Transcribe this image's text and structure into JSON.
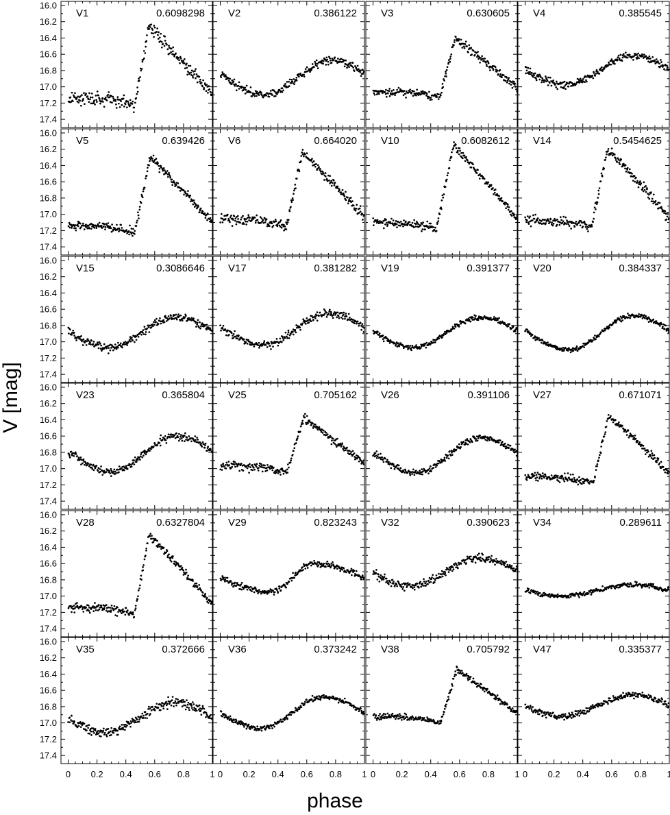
{
  "chart_data": {
    "type": "scatter",
    "layout": "6x4 panel grid, shared axes",
    "xlabel": "phase",
    "ylabel": "V [mag]",
    "xlim": [
      -0.05,
      1.0
    ],
    "ylim": [
      17.5,
      15.95
    ],
    "y_inverted": true,
    "xticks": [
      0,
      0.2,
      0.4,
      0.6,
      0.8,
      1
    ],
    "xtick_labels": [
      "0",
      "0.2",
      "0.4",
      "0.6",
      "0.8",
      "1"
    ],
    "yticks": [
      16.0,
      16.2,
      16.4,
      16.6,
      16.8,
      17.0,
      17.2,
      17.4
    ],
    "ytick_labels": [
      "16.0",
      "16.2",
      "16.4",
      "16.6",
      "16.8",
      "17.0",
      "17.2",
      "17.4"
    ],
    "grid": false,
    "marker_color": "#000000",
    "panels": [
      {
        "name": "V1",
        "period": "0.6098298",
        "kind": "ab",
        "min_mag": 17.22,
        "max_mag": 16.27,
        "rise_start": 0.46,
        "rise_end": 0.56,
        "scatter": 0.04
      },
      {
        "name": "V2",
        "period": "0.386122",
        "kind": "c",
        "min_mag": 17.1,
        "max_mag": 16.67,
        "min_phase": 0.3,
        "max_phase": 0.78,
        "scatter": 0.025
      },
      {
        "name": "V3",
        "period": "0.630605",
        "kind": "ab",
        "min_mag": 17.14,
        "max_mag": 16.4,
        "rise_start": 0.46,
        "rise_end": 0.57,
        "scatter": 0.025
      },
      {
        "name": "V4",
        "period": "0.385545",
        "kind": "c",
        "min_mag": 16.98,
        "max_mag": 16.62,
        "min_phase": 0.28,
        "max_phase": 0.75,
        "scatter": 0.025
      },
      {
        "name": "V5",
        "period": "0.639426",
        "kind": "ab",
        "min_mag": 17.22,
        "max_mag": 16.3,
        "rise_start": 0.46,
        "rise_end": 0.57,
        "scatter": 0.025
      },
      {
        "name": "V6",
        "period": "0.664020",
        "kind": "ab",
        "min_mag": 17.15,
        "max_mag": 16.23,
        "rise_start": 0.46,
        "rise_end": 0.57,
        "scatter": 0.03
      },
      {
        "name": "V10",
        "period": "0.6082612",
        "kind": "ab",
        "min_mag": 17.18,
        "max_mag": 16.15,
        "rise_start": 0.44,
        "rise_end": 0.56,
        "scatter": 0.025
      },
      {
        "name": "V14",
        "period": "0.5454625",
        "kind": "ab",
        "min_mag": 17.16,
        "max_mag": 16.2,
        "rise_start": 0.46,
        "rise_end": 0.57,
        "scatter": 0.03
      },
      {
        "name": "V15",
        "period": "0.3086646",
        "kind": "c",
        "min_mag": 17.07,
        "max_mag": 16.7,
        "min_phase": 0.28,
        "max_phase": 0.75,
        "scatter": 0.025
      },
      {
        "name": "V17",
        "period": "0.381282",
        "kind": "c",
        "min_mag": 17.04,
        "max_mag": 16.65,
        "min_phase": 0.3,
        "max_phase": 0.75,
        "scatter": 0.025
      },
      {
        "name": "V19",
        "period": "0.391377",
        "kind": "c",
        "min_mag": 17.07,
        "max_mag": 16.7,
        "min_phase": 0.28,
        "max_phase": 0.75,
        "scatter": 0.015
      },
      {
        "name": "V20",
        "period": "0.384337",
        "kind": "c",
        "min_mag": 17.1,
        "max_mag": 16.68,
        "min_phase": 0.3,
        "max_phase": 0.75,
        "scatter": 0.015
      },
      {
        "name": "V23",
        "period": "0.365804",
        "kind": "c",
        "min_mag": 17.04,
        "max_mag": 16.6,
        "min_phase": 0.3,
        "max_phase": 0.75,
        "scatter": 0.025
      },
      {
        "name": "V25",
        "period": "0.705162",
        "kind": "ab",
        "min_mag": 17.05,
        "max_mag": 16.38,
        "rise_start": 0.46,
        "rise_end": 0.58,
        "scatter": 0.025
      },
      {
        "name": "V26",
        "period": "0.391106",
        "kind": "c",
        "min_mag": 17.05,
        "max_mag": 16.62,
        "min_phase": 0.3,
        "max_phase": 0.75,
        "scatter": 0.02
      },
      {
        "name": "V27",
        "period": "0.671071",
        "kind": "ab",
        "min_mag": 17.18,
        "max_mag": 16.35,
        "rise_start": 0.47,
        "rise_end": 0.58,
        "scatter": 0.025
      },
      {
        "name": "V28",
        "period": "0.6327804",
        "kind": "ab",
        "min_mag": 17.22,
        "max_mag": 16.25,
        "rise_start": 0.46,
        "rise_end": 0.56,
        "scatter": 0.025
      },
      {
        "name": "V29",
        "period": "0.823243",
        "kind": "c",
        "min_mag": 16.95,
        "max_mag": 16.6,
        "min_phase": 0.35,
        "max_phase": 0.65,
        "scatter": 0.02
      },
      {
        "name": "V32",
        "period": "0.390623",
        "kind": "c",
        "min_mag": 16.88,
        "max_mag": 16.53,
        "min_phase": 0.25,
        "max_phase": 0.75,
        "scatter": 0.025
      },
      {
        "name": "V34",
        "period": "0.289611",
        "kind": "c",
        "min_mag": 17.0,
        "max_mag": 16.86,
        "min_phase": 0.25,
        "max_phase": 0.75,
        "scatter": 0.015
      },
      {
        "name": "V35",
        "period": "0.372666",
        "kind": "c",
        "min_mag": 17.12,
        "max_mag": 16.75,
        "min_phase": 0.25,
        "max_phase": 0.75,
        "scatter": 0.03
      },
      {
        "name": "V36",
        "period": "0.373242",
        "kind": "c",
        "min_mag": 17.07,
        "max_mag": 16.68,
        "min_phase": 0.28,
        "max_phase": 0.72,
        "scatter": 0.015
      },
      {
        "name": "V38",
        "period": "0.705792",
        "kind": "ab",
        "min_mag": 17.0,
        "max_mag": 16.35,
        "rise_start": 0.47,
        "rise_end": 0.58,
        "scatter": 0.02
      },
      {
        "name": "V47",
        "period": "0.335377",
        "kind": "c",
        "min_mag": 16.92,
        "max_mag": 16.66,
        "min_phase": 0.25,
        "max_phase": 0.75,
        "scatter": 0.02
      }
    ]
  }
}
